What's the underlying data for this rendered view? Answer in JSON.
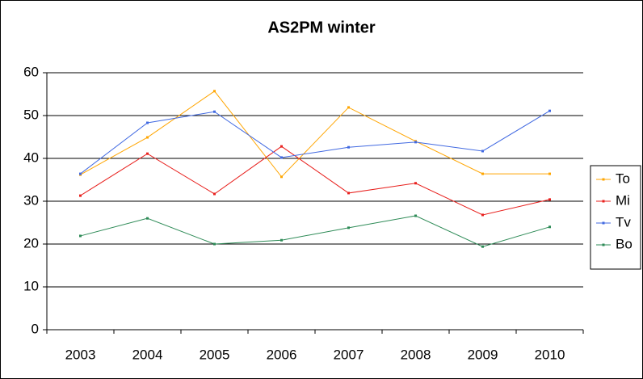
{
  "chart_data": {
    "type": "line",
    "title": "AS2PM winter",
    "categories": [
      "2003",
      "2004",
      "2005",
      "2006",
      "2007",
      "2008",
      "2009",
      "2010"
    ],
    "series": [
      {
        "name": "To",
        "color": "#ffa500",
        "values": [
          36.2,
          44.9,
          55.7,
          35.7,
          51.9,
          44.0,
          36.4,
          36.4
        ]
      },
      {
        "name": "Mi",
        "color": "#e8201d",
        "values": [
          31.3,
          41.1,
          31.7,
          42.8,
          31.9,
          34.2,
          26.8,
          30.4
        ]
      },
      {
        "name": "Tv",
        "color": "#4169e1",
        "values": [
          36.4,
          48.3,
          50.9,
          40.2,
          42.6,
          43.8,
          41.7,
          51.1
        ]
      },
      {
        "name": "Bo",
        "color": "#2e8b57",
        "values": [
          21.9,
          26.0,
          20.0,
          20.9,
          23.8,
          26.6,
          19.4,
          24.0
        ]
      }
    ],
    "ylim": [
      0,
      60
    ],
    "yticks": [
      0,
      10,
      20,
      30,
      40,
      50,
      60
    ],
    "grid": true,
    "legend": "right"
  }
}
